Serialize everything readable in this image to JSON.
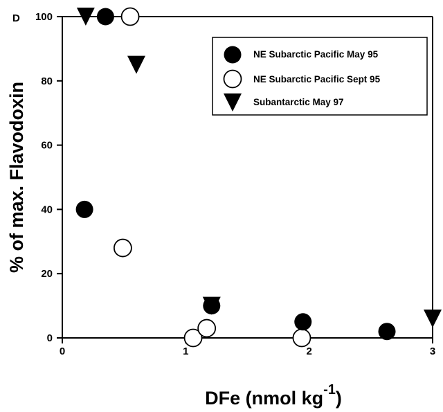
{
  "chart_data": {
    "type": "scatter",
    "panel_label": "D",
    "xlabel": "DFe  (nmol kg",
    "xlabel_superscript": "-1",
    "xlabel_close": ")",
    "ylabel": "% of max. Flavodoxin",
    "xlim": [
      0,
      3
    ],
    "ylim": [
      0,
      100
    ],
    "xticks": [
      0,
      1,
      2,
      3
    ],
    "xtick_labels": [
      "0",
      "1",
      "2",
      "3"
    ],
    "yticks": [
      0,
      20,
      40,
      60,
      80,
      100
    ],
    "ytick_labels": [
      "0",
      "20",
      "40",
      "60",
      "80",
      "100"
    ],
    "grid": false,
    "legend_position": "top-right",
    "series": [
      {
        "name": "NE Subarctic Pacific May 95",
        "marker": "filled-circle",
        "color": "#000000",
        "x": [
          0.18,
          0.35,
          1.21,
          1.95,
          2.63
        ],
        "y": [
          40,
          100,
          10,
          5,
          2
        ]
      },
      {
        "name": "NE Subarctic Pacific Sept 95",
        "marker": "open-circle",
        "color": "#000000",
        "x": [
          0.55,
          0.49,
          1.06,
          1.17,
          1.94
        ],
        "y": [
          100,
          28,
          0,
          3,
          0
        ]
      },
      {
        "name": "Subantarctic May 97",
        "marker": "filled-triangle-down",
        "color": "#000000",
        "x": [
          0.19,
          0.6,
          1.21,
          3.0
        ],
        "y": [
          100,
          85,
          10,
          6
        ]
      }
    ]
  }
}
